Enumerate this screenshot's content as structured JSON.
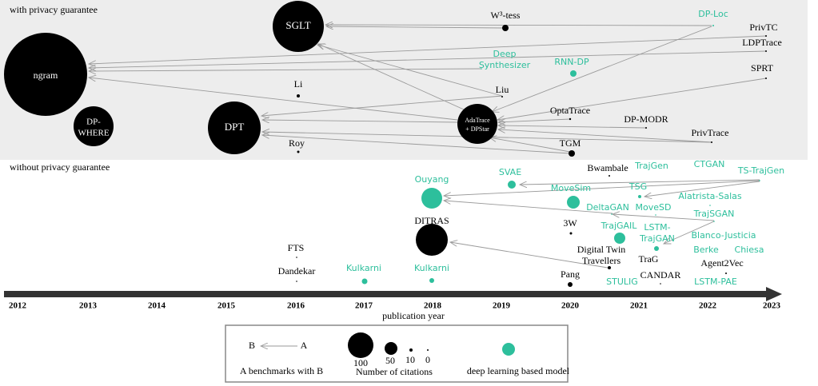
{
  "regions": {
    "private": "with privacy guarantee",
    "nonprivate": "without privacy guarantee"
  },
  "timeline": {
    "years": [
      "2012",
      "2013",
      "2014",
      "2015",
      "2016",
      "2017",
      "2018",
      "2019",
      "2020",
      "2021",
      "2022",
      "2023"
    ],
    "label": "publication year"
  },
  "nodes": [
    {
      "lines": [
        "ngram"
      ]
    },
    {
      "lines": [
        "DP-",
        "WHERE"
      ]
    },
    {
      "lines": [
        "SGLT"
      ]
    },
    {
      "lines": [
        "DPT"
      ]
    },
    {
      "lines": [
        "AdaTrace",
        "+ DPStar"
      ]
    },
    {
      "lines": [
        "W³-tess"
      ]
    },
    {
      "lines": [
        "DP-Loc"
      ]
    },
    {
      "lines": [
        "PrivTC"
      ]
    },
    {
      "lines": [
        "LDPTrace"
      ]
    },
    {
      "lines": [
        "Deep",
        "Synthesizer"
      ]
    },
    {
      "lines": [
        "RNN-DP"
      ]
    },
    {
      "lines": [
        "SPRT"
      ]
    },
    {
      "lines": [
        "Li"
      ]
    },
    {
      "lines": [
        "Liu"
      ]
    },
    {
      "lines": [
        "OptaTrace"
      ]
    },
    {
      "lines": [
        "DP-MODR"
      ]
    },
    {
      "lines": [
        "PrivTrace"
      ]
    },
    {
      "lines": [
        "Roy"
      ]
    },
    {
      "lines": [
        "TGM"
      ]
    },
    {
      "lines": [
        "Ouyang"
      ]
    },
    {
      "lines": [
        "SVAE"
      ]
    },
    {
      "lines": [
        "Bwambale"
      ]
    },
    {
      "lines": [
        "TrajGen"
      ]
    },
    {
      "lines": [
        "CTGAN"
      ]
    },
    {
      "lines": [
        "TS-TrajGen"
      ]
    },
    {
      "lines": [
        "MoveSim"
      ]
    },
    {
      "lines": [
        "TSG"
      ]
    },
    {
      "lines": [
        "Alatrista-Salas"
      ]
    },
    {
      "lines": [
        "DeltaGAN"
      ]
    },
    {
      "lines": [
        "MoveSD"
      ]
    },
    {
      "lines": [
        "TrajSGAN"
      ]
    },
    {
      "lines": [
        "DITRAS"
      ]
    },
    {
      "lines": [
        "3W"
      ]
    },
    {
      "lines": [
        "TrajGAIL"
      ]
    },
    {
      "lines": [
        "LSTM-",
        "TrajGAN"
      ]
    },
    {
      "lines": [
        "Blanco-Justicia"
      ]
    },
    {
      "lines": [
        "Berke"
      ]
    },
    {
      "lines": [
        "Chiesa"
      ]
    },
    {
      "lines": [
        "FTS"
      ]
    },
    {
      "lines": [
        "Digital Twin",
        "Travellers"
      ]
    },
    {
      "lines": [
        "TraG"
      ]
    },
    {
      "lines": [
        "Agent2Vec"
      ]
    },
    {
      "lines": [
        "Dandekar"
      ]
    },
    {
      "lines": [
        "Kulkarni"
      ]
    },
    {
      "lines": [
        "Kulkarni"
      ]
    },
    {
      "lines": [
        "Pang"
      ]
    },
    {
      "lines": [
        "CANDAR"
      ]
    },
    {
      "lines": [
        "STULIG"
      ]
    },
    {
      "lines": [
        "LSTM-PAE"
      ]
    }
  ],
  "legend": {
    "b": "B",
    "a": "A",
    "arrow_text": "A benchmarks with B",
    "sizes": [
      "100",
      "50",
      "10",
      "0"
    ],
    "size_text": "Number of citations",
    "dl_text": "deep learning based model"
  }
}
